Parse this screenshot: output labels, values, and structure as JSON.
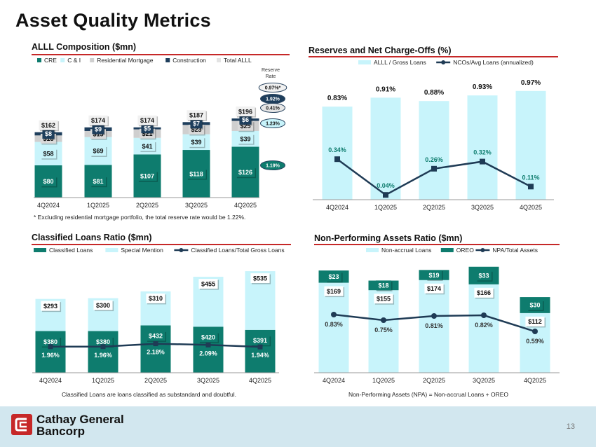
{
  "page": {
    "title": "Asset Quality Metrics",
    "page_number": "13",
    "company_line1": "Cathay General",
    "company_line2": "Bancorp"
  },
  "colors": {
    "dark_teal": "#0e7c6e",
    "light_cyan": "#c8f4fb",
    "gray": "#cfcfcf",
    "navy": "#1e3e5c",
    "line": "#1f3b55",
    "accent_red": "#c62828"
  },
  "chart_data": [
    {
      "id": "allll",
      "type": "bar",
      "title": "ALLL Composition ($mn)",
      "categories": [
        "4Q2024",
        "1Q2025",
        "2Q2025",
        "3Q2025",
        "4Q2025"
      ],
      "series": [
        {
          "name": "CRE",
          "values": [
            80,
            81,
            107,
            118,
            126
          ],
          "labels": [
            "$80",
            "$81",
            "$107",
            "$118",
            "$126"
          ]
        },
        {
          "name": "C & I",
          "values": [
            58,
            69,
            41,
            39,
            39
          ],
          "labels": [
            "$58",
            "$69",
            "$41",
            "$39",
            "$39"
          ]
        },
        {
          "name": "Residential Mortgage",
          "values": [
            16,
            15,
            21,
            23,
            25
          ],
          "labels": [
            "$16",
            "$15",
            "$21",
            "$23",
            "$25"
          ]
        },
        {
          "name": "Construction",
          "values": [
            8,
            9,
            5,
            7,
            6
          ],
          "labels": [
            "$8",
            "$9",
            "$5",
            "$7",
            "$6"
          ]
        }
      ],
      "totals": {
        "name": "Total ALLL",
        "values": [
          162,
          174,
          174,
          187,
          196
        ],
        "labels": [
          "$162",
          "$174",
          "$174",
          "$187",
          "$196"
        ]
      },
      "reserve_rate_header": "Reserve Rate",
      "reserve_rates": [
        {
          "label": "0.97%*",
          "segment": "Total ALLL"
        },
        {
          "label": "1.92%",
          "segment": "Construction"
        },
        {
          "label": "0.41%",
          "segment": "Residential Mortgage"
        },
        {
          "label": "1.23%",
          "segment": "C & I"
        },
        {
          "label": "1.19%",
          "segment": "CRE"
        }
      ],
      "footnote": "* Excluding residential mortgage portfolio, the total reserve rate would be 1.22%.",
      "ylim": [
        0,
        210
      ]
    },
    {
      "id": "reserves",
      "type": "bar",
      "title": "Reserves and Net Charge-Offs (%)",
      "categories": [
        "4Q2024",
        "1Q2025",
        "2Q2025",
        "3Q2025",
        "4Q2025"
      ],
      "series": [
        {
          "name": "ALLL / Gross Loans",
          "kind": "bar",
          "values": [
            0.83,
            0.91,
            0.88,
            0.93,
            0.97
          ],
          "labels": [
            "0.83%",
            "0.91%",
            "0.88%",
            "0.93%",
            "0.97%"
          ]
        },
        {
          "name": "NCOs/Avg Loans (annualized)",
          "kind": "line",
          "values": [
            0.34,
            0.04,
            0.26,
            0.32,
            0.11
          ],
          "labels": [
            "0.34%",
            "0.04%",
            "0.26%",
            "0.32%",
            "0.11%"
          ]
        }
      ],
      "bar_ylim": [
        0,
        1.05
      ],
      "line_ylim": [
        0,
        1.0
      ]
    },
    {
      "id": "classified",
      "type": "bar",
      "title": "Classified Loans Ratio ($mn)",
      "categories": [
        "4Q2024",
        "1Q2025",
        "2Q2025",
        "3Q2025",
        "4Q2025"
      ],
      "series": [
        {
          "name": "Classified Loans",
          "kind": "bar",
          "values": [
            380,
            380,
            432,
            420,
            391
          ],
          "labels": [
            "$380",
            "$380",
            "$432",
            "$420",
            "$391"
          ]
        },
        {
          "name": "Special Mention",
          "kind": "bar",
          "values": [
            293,
            300,
            310,
            455,
            535
          ],
          "labels": [
            "$293",
            "$300",
            "$310",
            "$455",
            "$535"
          ]
        },
        {
          "name": "Classified Loans/Total Gross Loans",
          "kind": "line",
          "values": [
            1.96,
            1.96,
            2.18,
            2.09,
            1.94
          ],
          "labels": [
            "1.96%",
            "1.96%",
            "2.18%",
            "2.09%",
            "1.94%"
          ]
        }
      ],
      "footnote": "Classified Loans are loans classified as substandard and doubtful.",
      "ylim": [
        0,
        960
      ]
    },
    {
      "id": "npa",
      "type": "bar",
      "title": "Non-Performing Assets Ratio ($mn)",
      "categories": [
        "4Q2024",
        "1Q2025",
        "2Q2025",
        "3Q2025",
        "4Q2025"
      ],
      "series": [
        {
          "name": "Non-accrual Loans",
          "kind": "bar",
          "values": [
            169,
            155,
            174,
            166,
            112
          ],
          "labels": [
            "$169",
            "$155",
            "$174",
            "$166",
            "$112"
          ]
        },
        {
          "name": "OREO",
          "kind": "bar",
          "values": [
            23,
            18,
            19,
            33,
            30
          ],
          "labels": [
            "$23",
            "$18",
            "$19",
            "$33",
            "$30"
          ]
        },
        {
          "name": "NPA/Total Assets",
          "kind": "line",
          "values": [
            0.83,
            0.75,
            0.81,
            0.82,
            0.59
          ],
          "labels": [
            "0.83%",
            "0.75%",
            "0.81%",
            "0.82%",
            "0.59%"
          ]
        }
      ],
      "footnote": "Non-Performing Assets (NPA) = Non-accrual Loans + OREO",
      "ylim": [
        0,
        210
      ]
    }
  ]
}
